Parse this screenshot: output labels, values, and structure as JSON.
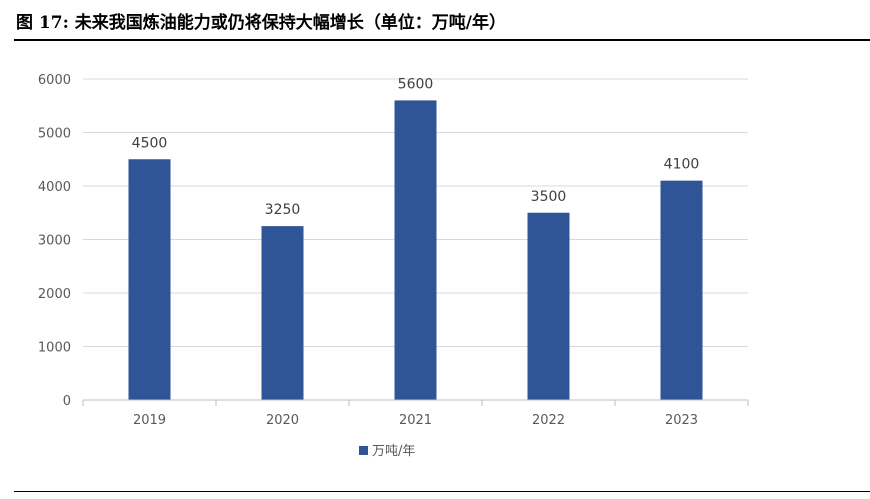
{
  "figure": {
    "title": "图 17: 未来我国炼油能力或仍将保持大幅增长（单位：万吨/年）"
  },
  "colors": {
    "bar": "#2F5597",
    "grid": "#D9D9D9",
    "axis": "#BFBFBF"
  },
  "chart_data": {
    "type": "bar",
    "categories": [
      "2019",
      "2020",
      "2021",
      "2022",
      "2023"
    ],
    "series": [
      {
        "name": "万吨/年",
        "values": [
          4500,
          3250,
          5600,
          3500,
          4100
        ]
      }
    ],
    "ylim": [
      0,
      6000
    ],
    "yticks": [
      0,
      1000,
      2000,
      3000,
      4000,
      5000,
      6000
    ],
    "grid": true,
    "legend": "bottom-center",
    "data_labels": true
  }
}
